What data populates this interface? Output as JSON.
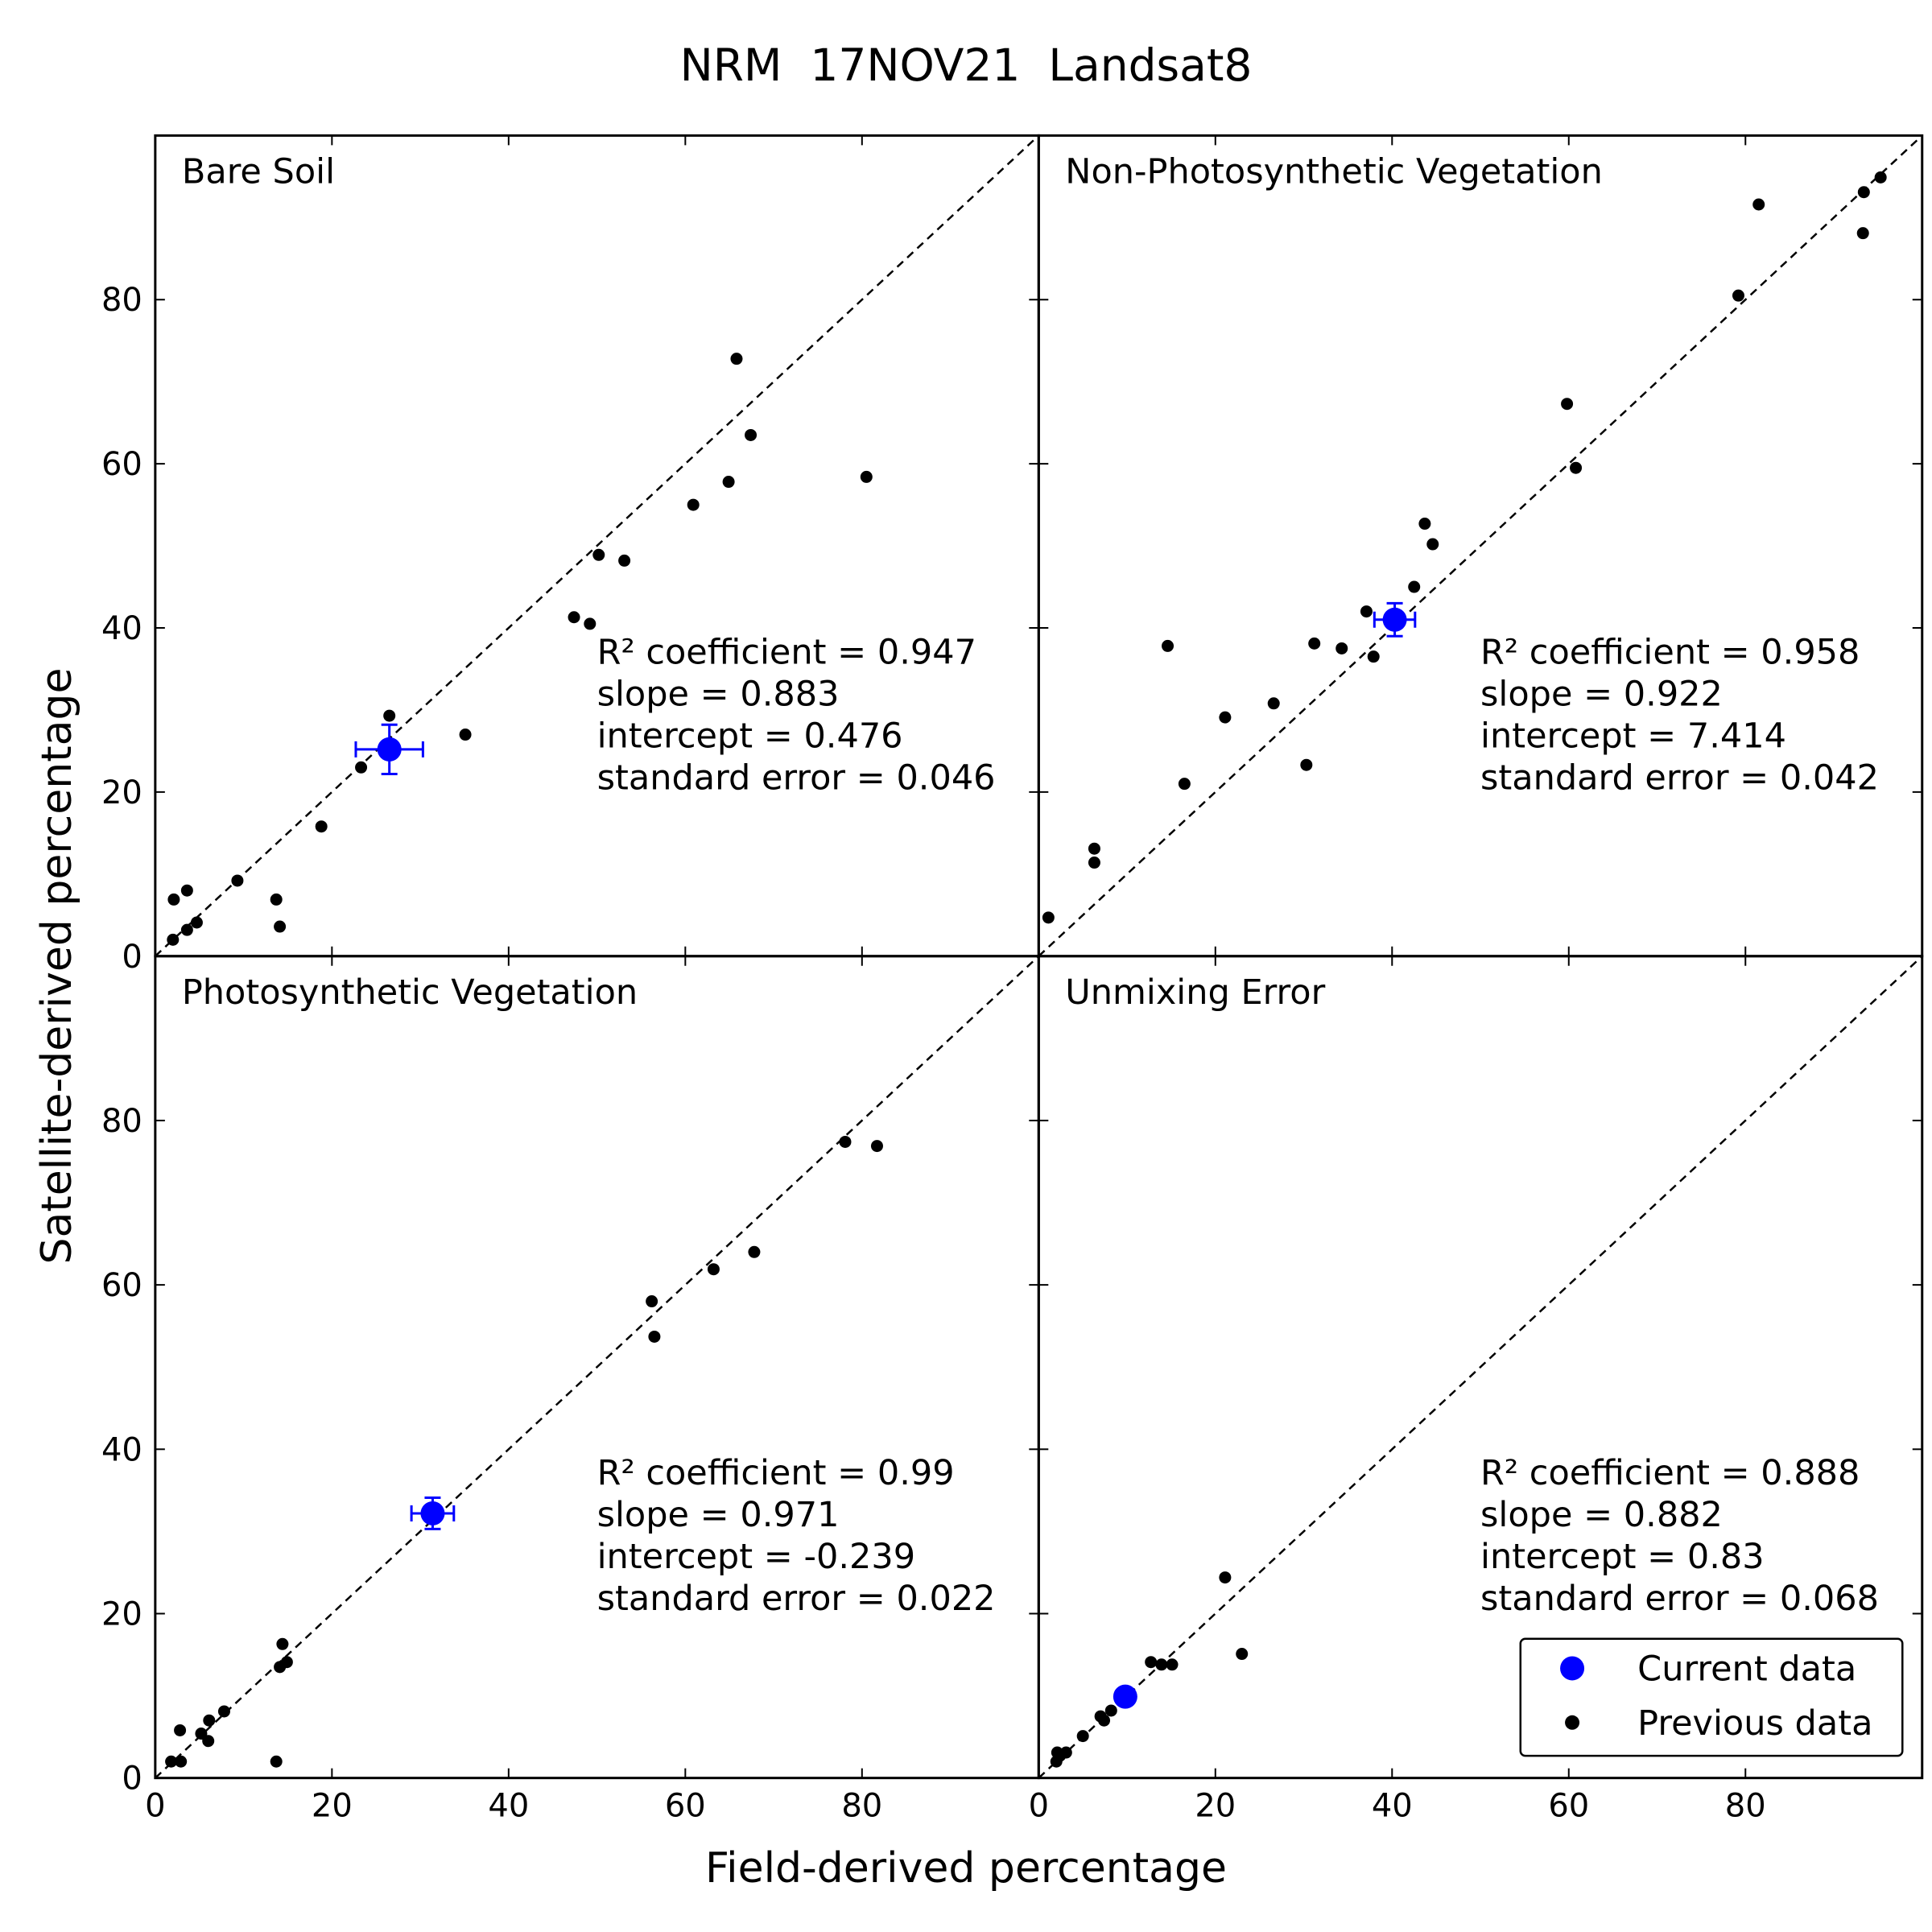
{
  "figure": {
    "title": "NRM  17NOV21  Landsat8",
    "xlabel": "Field-derived percentage",
    "ylabel": "Satellite-derived percentage"
  },
  "chart_data": [
    {
      "type": "scatter",
      "title": "Bare Soil",
      "xlim": [
        0,
        100
      ],
      "ylim": [
        0,
        100
      ],
      "xticks": [
        0,
        20,
        40,
        60,
        80
      ],
      "yticks": [
        0,
        20,
        40,
        60,
        80
      ],
      "annotations": [
        "R² coefficient = 0.947",
        "slope = 0.883",
        "intercept = 0.476",
        "standard error = 0.046"
      ],
      "series": [
        {
          "name": "Current data",
          "color": "#0000ff",
          "x": [
            26.5
          ],
          "y": [
            25.2
          ],
          "xerr": [
            3.8
          ],
          "yerr": [
            3.0
          ]
        },
        {
          "name": "Previous data",
          "color": "#000000",
          "x": [
            2.0,
            2.1,
            3.6,
            3.6,
            4.7,
            9.3,
            13.7,
            14.1,
            18.8,
            23.3,
            26.5,
            35.1,
            47.4,
            49.2,
            50.2,
            53.1,
            60.9,
            64.9,
            65.8,
            67.4,
            80.5
          ],
          "y": [
            2.0,
            6.9,
            8.0,
            3.2,
            4.1,
            9.2,
            6.9,
            3.6,
            15.8,
            23.0,
            29.3,
            27.0,
            41.3,
            40.5,
            48.9,
            48.2,
            55.0,
            57.8,
            72.8,
            63.5,
            58.4
          ]
        }
      ]
    },
    {
      "type": "scatter",
      "title": "Non-Photosynthetic Vegetation",
      "xlim": [
        0,
        100
      ],
      "ylim": [
        0,
        100
      ],
      "xticks": [
        0,
        20,
        40,
        60,
        80
      ],
      "yticks": [
        0,
        20,
        40,
        60,
        80
      ],
      "annotations": [
        "R² coefficient = 0.958",
        "slope = 0.922",
        "intercept = 7.414",
        "standard error = 0.042"
      ],
      "series": [
        {
          "name": "Current data",
          "color": "#0000ff",
          "x": [
            40.3
          ],
          "y": [
            41.0
          ],
          "xerr": [
            2.3
          ],
          "yerr": [
            2.0
          ]
        },
        {
          "name": "Previous data",
          "color": "#000000",
          "x": [
            1.1,
            6.3,
            6.3,
            14.6,
            16.5,
            21.1,
            26.6,
            30.3,
            31.2,
            34.3,
            37.1,
            37.9,
            42.5,
            43.7,
            44.6,
            59.8,
            60.8,
            79.2,
            81.5,
            93.3,
            93.4,
            95.3
          ],
          "y": [
            4.7,
            11.4,
            13.1,
            37.8,
            21.0,
            29.1,
            30.8,
            23.3,
            38.1,
            37.5,
            42.0,
            36.5,
            45.0,
            52.7,
            50.2,
            67.3,
            59.5,
            80.5,
            91.6,
            88.1,
            93.1,
            94.9
          ]
        }
      ]
    },
    {
      "type": "scatter",
      "title": "Photosynthetic Vegetation",
      "xlim": [
        0,
        100
      ],
      "ylim": [
        0,
        100
      ],
      "xticks": [
        0,
        20,
        40,
        60,
        80
      ],
      "yticks": [
        0,
        20,
        40,
        60,
        80
      ],
      "annotations": [
        "R² coefficient = 0.99",
        "slope = 0.971",
        "intercept = -0.239",
        "standard error = 0.022"
      ],
      "series": [
        {
          "name": "Current data",
          "color": "#0000ff",
          "x": [
            31.4
          ],
          "y": [
            32.2
          ],
          "xerr": [
            2.4
          ],
          "yerr": [
            1.9
          ]
        },
        {
          "name": "Previous data",
          "color": "#000000",
          "x": [
            1.8,
            2.9,
            2.8,
            5.2,
            6.1,
            6.0,
            7.8,
            13.7,
            14.4,
            14.1,
            14.9,
            56.2,
            56.5,
            63.2,
            67.8,
            78.1,
            81.7
          ],
          "y": [
            2.0,
            2.0,
            5.8,
            5.4,
            7.0,
            4.5,
            8.1,
            2.0,
            16.3,
            13.5,
            14.1,
            58.0,
            53.7,
            61.9,
            64.0,
            77.4,
            76.9
          ]
        }
      ]
    },
    {
      "type": "scatter",
      "title": "Unmixing Error",
      "xlim": [
        0,
        100
      ],
      "ylim": [
        0,
        100
      ],
      "xticks": [
        0,
        20,
        40,
        60,
        80
      ],
      "yticks": [
        0,
        20,
        40,
        60,
        80
      ],
      "annotations": [
        "R² coefficient = 0.888",
        "slope = 0.882",
        "intercept = 0.83",
        "standard error = 0.068"
      ],
      "legend": "lower right",
      "series": [
        {
          "name": "Current data",
          "color": "#0000ff",
          "x": [
            9.8
          ],
          "y": [
            9.9
          ]
        },
        {
          "name": "Previous data",
          "color": "#000000",
          "x": [
            2.0,
            2.1,
            3.1,
            2.4,
            5.0,
            7.0,
            7.4,
            8.2,
            12.7,
            13.9,
            15.1,
            21.1,
            23.0
          ],
          "y": [
            2.0,
            3.1,
            3.1,
            2.7,
            5.1,
            7.5,
            7.0,
            8.2,
            14.1,
            13.8,
            13.8,
            24.4,
            15.1
          ]
        }
      ]
    }
  ]
}
